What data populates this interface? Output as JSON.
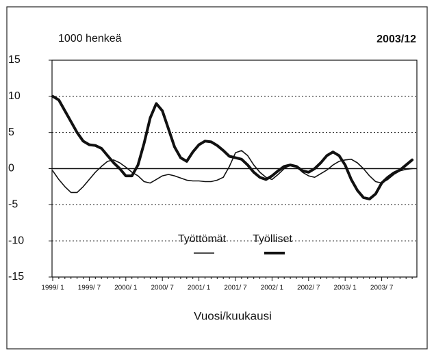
{
  "chart_data": {
    "type": "line",
    "title": "2003/12",
    "y_label": "1000 henkeä",
    "x_label": "Vuosi/kuukausi",
    "categories": [
      "1999/ 1",
      null,
      null,
      null,
      null,
      null,
      "1999/ 7",
      null,
      null,
      null,
      null,
      null,
      "2000/ 1",
      null,
      null,
      null,
      null,
      null,
      "2000/ 7",
      null,
      null,
      null,
      null,
      null,
      "2001/ 1",
      null,
      null,
      null,
      null,
      null,
      "2001/ 7",
      null,
      null,
      null,
      null,
      null,
      "2002/ 1",
      null,
      null,
      null,
      null,
      null,
      "2002/ 7",
      null,
      null,
      null,
      null,
      null,
      "2003/ 1",
      null,
      null,
      null,
      null,
      null,
      "2003/ 7",
      null,
      null,
      null,
      null,
      null
    ],
    "series": [
      {
        "name": "Työttömät",
        "color": "#111111",
        "width": 1.6,
        "values": [
          -0.3,
          -1.5,
          -2.5,
          -3.3,
          -3.3,
          -2.5,
          -1.5,
          -0.5,
          0.3,
          1,
          1.2,
          0.8,
          0.2,
          -0.5,
          -1,
          -1.8,
          -2,
          -1.5,
          -1,
          -0.8,
          -1,
          -1.3,
          -1.6,
          -1.7,
          -1.7,
          -1.8,
          -1.8,
          -1.6,
          -1.2,
          0.3,
          2.2,
          2.5,
          1.8,
          0.5,
          -0.5,
          -1.2,
          -1.5,
          -0.8,
          0,
          0.5,
          0.3,
          -0.5,
          -1,
          -1.2,
          -0.7,
          -0.2,
          0.5,
          1,
          1.2,
          1.3,
          0.8,
          0,
          -1,
          -1.8,
          -2,
          -1.5,
          -0.8,
          -0.3,
          -0.1,
          0
        ]
      },
      {
        "name": "Työlliset",
        "color": "#111111",
        "width": 4,
        "values": [
          10,
          9.5,
          8,
          6.5,
          5,
          3.8,
          3.3,
          3.2,
          2.8,
          1.8,
          0.8,
          0,
          -1,
          -1,
          0.5,
          3.5,
          7,
          9,
          8,
          5.5,
          3,
          1.5,
          1,
          2.3,
          3.3,
          3.8,
          3.7,
          3.2,
          2.5,
          1.7,
          1.5,
          1.3,
          0.5,
          -0.5,
          -1.2,
          -1.5,
          -1,
          -0.3,
          0.3,
          0.5,
          0.3,
          -0.3,
          -0.5,
          0,
          0.8,
          1.8,
          2.3,
          1.8,
          0.5,
          -1.5,
          -3,
          -4,
          -4.2,
          -3.5,
          -2,
          -1.2,
          -0.6,
          -0.2,
          0.5,
          1.2
        ]
      }
    ],
    "ylim": [
      -15,
      15
    ],
    "yticks": [
      -15,
      -10,
      -5,
      0,
      5,
      10,
      15
    ],
    "grid": true,
    "legend": "bottom"
  }
}
